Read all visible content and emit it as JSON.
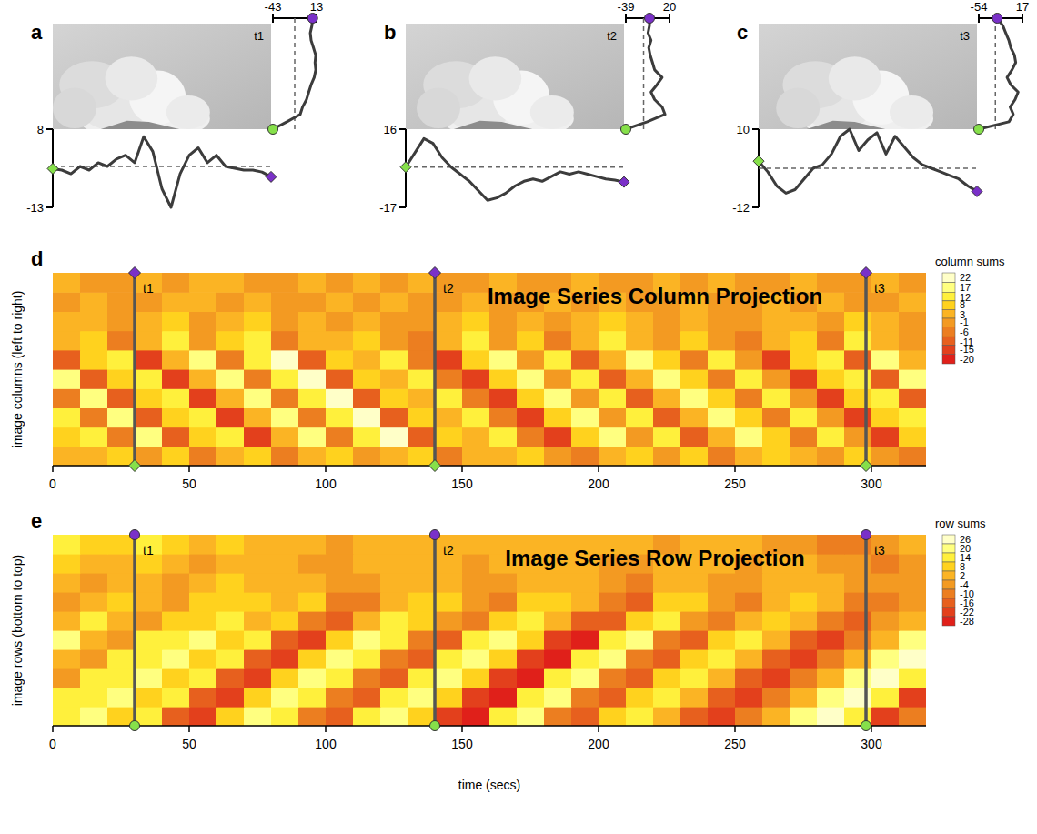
{
  "chart_data": [
    {
      "type": "line",
      "panel": "a",
      "time_label": "t1",
      "column_profile": {
        "values": [
          -2.6,
          -3,
          -4,
          -2,
          -3,
          -1,
          -2,
          0,
          1,
          -1,
          6,
          2,
          -8,
          -13,
          -4,
          1,
          3,
          -1,
          1,
          -2,
          -2.5,
          -3,
          -3,
          -3.5,
          -4.8
        ],
        "ylim": [
          -13,
          8
        ],
        "yticks": [
          -13,
          8
        ],
        "reference": -2
      },
      "row_profile": {
        "values": [
          -43,
          -25,
          -8,
          -5,
          0,
          3,
          6,
          10,
          12,
          11,
          12,
          9,
          6,
          5,
          7,
          8
        ],
        "xlim": [
          -43,
          13
        ],
        "xticks": [
          -43,
          13
        ],
        "reference": -15
      }
    },
    {
      "type": "line",
      "panel": "b",
      "time_label": "t2",
      "column_profile": {
        "values": [
          0,
          6,
          12,
          10,
          4,
          0,
          -3,
          -6,
          -10,
          -14,
          -13,
          -11,
          -8,
          -6,
          -5,
          -6,
          -4,
          -2,
          -3,
          -2,
          -3,
          -4,
          -5,
          -5.5,
          -6.3
        ],
        "ylim": [
          -17,
          16
        ],
        "yticks": [
          -17,
          16
        ],
        "reference": 0
      },
      "row_profile": {
        "values": [
          -39,
          -10,
          14,
          10,
          0,
          -5,
          3,
          10,
          0,
          -3,
          -6,
          -8,
          -5,
          -9,
          -7,
          -7
        ],
        "xlim": [
          -39,
          20
        ],
        "xticks": [
          -39,
          20
        ],
        "reference": -15
      }
    },
    {
      "type": "line",
      "panel": "c",
      "time_label": "t3",
      "column_profile": {
        "values": [
          1,
          -2,
          -6,
          -8,
          -7,
          -4,
          -1,
          0,
          3,
          8,
          10,
          4,
          7,
          9,
          3,
          8,
          5,
          2,
          0,
          -1,
          -2,
          -3,
          -4,
          -6,
          -7.5
        ],
        "ylim": [
          -12,
          10
        ],
        "yticks": [
          -12,
          10
        ],
        "reference": -1
      },
      "row_profile": {
        "values": [
          -54,
          -5,
          2,
          -3,
          5,
          10,
          -2,
          -8,
          0,
          6,
          4,
          -2,
          -5,
          -10,
          -15,
          -24
        ],
        "xlim": [
          -54,
          17
        ],
        "xticks": [
          -54,
          17
        ],
        "reference": -27
      }
    },
    {
      "type": "heatmap",
      "panel": "d",
      "title": "Image Series Column Projection",
      "y_label": "image columns (left to right)",
      "marker": "diamond",
      "xlim": [
        0,
        320
      ],
      "xticks": [
        0,
        50,
        100,
        150,
        200,
        250,
        300
      ],
      "x_bins": [
        0,
        10,
        20,
        30,
        40,
        50,
        60,
        70,
        80,
        90,
        100,
        110,
        120,
        130,
        140,
        150,
        160,
        170,
        180,
        190,
        200,
        210,
        220,
        230,
        240,
        250,
        260,
        270,
        280,
        290,
        300,
        310,
        320
      ],
      "markers": [
        {
          "label": "t1",
          "x": 30
        },
        {
          "label": "t2",
          "x": 140
        },
        {
          "label": "t3",
          "x": 298
        }
      ],
      "cells": [
        [
          3,
          3,
          8,
          -1,
          8,
          -6,
          3,
          8,
          -6,
          3,
          8,
          -1,
          3,
          8,
          -6,
          3,
          3,
          8,
          -1,
          -6,
          3,
          8,
          -1,
          8,
          -6,
          3,
          8,
          3,
          -1,
          8,
          -1,
          -6
        ],
        [
          8,
          12,
          -6,
          17,
          -11,
          8,
          12,
          -15,
          3,
          17,
          -6,
          12,
          22,
          -11,
          8,
          3,
          12,
          -6,
          -15,
          8,
          17,
          -1,
          12,
          -11,
          3,
          17,
          8,
          -6,
          12,
          -1,
          -15,
          8
        ],
        [
          12,
          -6,
          17,
          -11,
          8,
          12,
          -15,
          3,
          17,
          -6,
          12,
          22,
          -11,
          8,
          3,
          12,
          -6,
          -15,
          8,
          17,
          -1,
          12,
          -11,
          3,
          17,
          8,
          -6,
          12,
          -1,
          -15,
          8,
          12
        ],
        [
          -6,
          17,
          -11,
          8,
          12,
          -15,
          3,
          17,
          -6,
          12,
          22,
          -11,
          8,
          3,
          12,
          -6,
          -15,
          8,
          17,
          -1,
          12,
          -11,
          3,
          17,
          8,
          -6,
          12,
          -1,
          -15,
          8,
          12,
          -11
        ],
        [
          17,
          -11,
          8,
          12,
          -15,
          3,
          17,
          -6,
          12,
          22,
          -11,
          8,
          3,
          12,
          -6,
          -15,
          8,
          17,
          -1,
          12,
          -11,
          3,
          17,
          8,
          -6,
          12,
          -1,
          -15,
          8,
          12,
          -11,
          17
        ],
        [
          -11,
          8,
          12,
          -15,
          3,
          17,
          -6,
          12,
          22,
          -11,
          8,
          3,
          12,
          -6,
          -15,
          8,
          17,
          -1,
          12,
          -11,
          3,
          17,
          8,
          -6,
          12,
          -1,
          -15,
          8,
          12,
          -11,
          17,
          3
        ],
        [
          3,
          8,
          -6,
          3,
          12,
          -1,
          8,
          12,
          -6,
          3,
          3,
          8,
          -1,
          -6,
          3,
          12,
          -1,
          8,
          -6,
          3,
          12,
          3,
          -1,
          8,
          -1,
          -6,
          3,
          8,
          -6,
          12,
          3,
          -1
        ],
        [
          3,
          3,
          -1,
          3,
          8,
          -1,
          3,
          8,
          -1,
          3,
          -1,
          3,
          -1,
          -1,
          3,
          8,
          -1,
          3,
          -1,
          3,
          8,
          3,
          -1,
          3,
          -1,
          -1,
          3,
          3,
          -1,
          8,
          3,
          -1
        ],
        [
          -1,
          3,
          -1,
          -1,
          3,
          3,
          -1,
          3,
          -1,
          -1,
          3,
          -1,
          3,
          -1,
          -1,
          3,
          -1,
          -1,
          3,
          -1,
          3,
          -1,
          -1,
          3,
          -1,
          -1,
          3,
          -1,
          3,
          -1,
          -1,
          3
        ],
        [
          3,
          -1,
          -1,
          3,
          -1,
          3,
          3,
          -1,
          -1,
          3,
          -1,
          3,
          -1,
          3,
          -1,
          -1,
          3,
          -1,
          -1,
          3,
          -1,
          -1,
          3,
          -1,
          3,
          -1,
          -1,
          3,
          -1,
          -1,
          3,
          -1
        ]
      ],
      "colorbar": {
        "title": "column sums",
        "range": [
          -22.5,
          24.5
        ],
        "ticks": [
          22,
          17,
          12,
          8,
          3,
          -1,
          -6,
          -11,
          -15,
          -20
        ],
        "colors": [
          "#ffffc8",
          "#ffff80",
          "#fff03c",
          "#ffd21e",
          "#fbb424",
          "#f39a22",
          "#ec7e20",
          "#e7601e",
          "#e3401c",
          "#e0201a"
        ]
      }
    },
    {
      "type": "heatmap",
      "panel": "e",
      "title": "Image Series Row Projection",
      "y_label": "image rows (bottom to top)",
      "x_label": "time (secs)",
      "marker": "circle",
      "xlim": [
        0,
        320
      ],
      "xticks": [
        0,
        50,
        100,
        150,
        200,
        250,
        300
      ],
      "x_bins": [
        0,
        10,
        20,
        30,
        40,
        50,
        60,
        70,
        80,
        90,
        100,
        110,
        120,
        130,
        140,
        150,
        160,
        170,
        180,
        190,
        200,
        210,
        220,
        230,
        240,
        250,
        260,
        270,
        280,
        290,
        300,
        310,
        320
      ],
      "markers": [
        {
          "label": "t1",
          "x": 30
        },
        {
          "label": "t2",
          "x": 140
        },
        {
          "label": "t3",
          "x": 298
        }
      ],
      "cells": [
        [
          14,
          20,
          8,
          14,
          -16,
          -22,
          8,
          20,
          14,
          -10,
          -16,
          14,
          20,
          8,
          -22,
          -28,
          14,
          20,
          -10,
          -16,
          8,
          14,
          2,
          -16,
          -22,
          -10,
          2,
          20,
          26,
          14,
          -22,
          -10
        ],
        [
          14,
          14,
          20,
          8,
          14,
          -16,
          -22,
          8,
          20,
          14,
          -10,
          -16,
          14,
          20,
          8,
          -22,
          -28,
          14,
          20,
          -10,
          -16,
          8,
          14,
          2,
          -16,
          -22,
          -10,
          2,
          20,
          26,
          14,
          -22
        ],
        [
          -4,
          14,
          14,
          20,
          8,
          14,
          -16,
          -22,
          8,
          20,
          14,
          -10,
          -16,
          14,
          20,
          8,
          -22,
          -28,
          14,
          20,
          -10,
          -16,
          8,
          14,
          2,
          -16,
          -22,
          -10,
          2,
          20,
          26,
          14
        ],
        [
          2,
          -4,
          14,
          14,
          20,
          8,
          14,
          -16,
          -22,
          8,
          20,
          14,
          -10,
          -16,
          14,
          20,
          8,
          -22,
          -28,
          14,
          20,
          -10,
          -16,
          8,
          14,
          2,
          -16,
          -22,
          -10,
          2,
          20,
          26
        ],
        [
          20,
          2,
          -4,
          14,
          14,
          20,
          8,
          14,
          -16,
          -22,
          8,
          20,
          14,
          -10,
          -16,
          14,
          20,
          8,
          -22,
          -28,
          14,
          20,
          -10,
          -16,
          8,
          14,
          2,
          -16,
          -22,
          -10,
          2,
          20
        ],
        [
          2,
          14,
          2,
          -4,
          8,
          8,
          14,
          2,
          8,
          -10,
          -16,
          2,
          14,
          8,
          -4,
          -10,
          8,
          14,
          2,
          -16,
          -16,
          8,
          14,
          -4,
          -10,
          2,
          8,
          2,
          -10,
          -16,
          -4,
          2
        ],
        [
          -4,
          2,
          8,
          2,
          -4,
          8,
          8,
          8,
          2,
          8,
          -10,
          -10,
          2,
          8,
          8,
          -4,
          -10,
          8,
          8,
          2,
          -10,
          -16,
          8,
          8,
          -4,
          -10,
          2,
          8,
          2,
          -10,
          -10,
          -4
        ],
        [
          2,
          -4,
          2,
          2,
          -4,
          2,
          8,
          2,
          2,
          2,
          -4,
          -4,
          2,
          2,
          2,
          -4,
          -4,
          2,
          2,
          2,
          -4,
          -10,
          2,
          2,
          -4,
          -4,
          2,
          2,
          2,
          -4,
          -4,
          -4
        ],
        [
          8,
          2,
          2,
          8,
          2,
          -4,
          2,
          2,
          2,
          -4,
          -4,
          2,
          2,
          2,
          2,
          -4,
          2,
          2,
          2,
          2,
          -4,
          -4,
          2,
          2,
          2,
          -4,
          2,
          2,
          -4,
          -4,
          -10,
          -4
        ],
        [
          14,
          8,
          8,
          14,
          8,
          2,
          8,
          2,
          2,
          2,
          -4,
          2,
          2,
          2,
          2,
          2,
          2,
          2,
          2,
          2,
          2,
          2,
          -4,
          2,
          2,
          2,
          -4,
          -4,
          -10,
          -10,
          -4,
          2
        ]
      ],
      "colorbar": {
        "title": "row sums",
        "range": [
          -31,
          29
        ],
        "ticks": [
          26,
          20,
          14,
          8,
          2,
          -4,
          -10,
          -16,
          -22,
          -28
        ],
        "colors": [
          "#ffffc8",
          "#ffff80",
          "#fff03c",
          "#ffd21e",
          "#fbb424",
          "#f39a22",
          "#ec7e20",
          "#e7601e",
          "#e3401c",
          "#e0201a"
        ]
      }
    }
  ]
}
